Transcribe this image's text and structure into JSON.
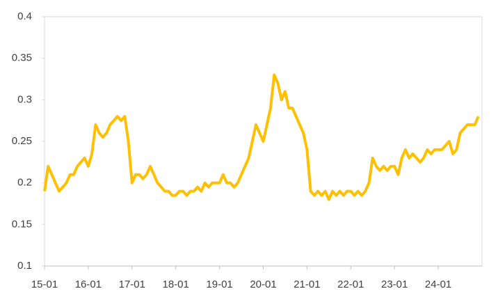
{
  "chart_data": {
    "type": "line",
    "categories": [
      "15-01",
      null,
      null,
      null,
      null,
      null,
      null,
      null,
      null,
      null,
      null,
      null,
      "16-01",
      null,
      null,
      null,
      null,
      null,
      null,
      null,
      null,
      null,
      null,
      null,
      "17-01",
      null,
      null,
      null,
      null,
      null,
      null,
      null,
      null,
      null,
      null,
      null,
      "18-01",
      null,
      null,
      null,
      null,
      null,
      null,
      null,
      null,
      null,
      null,
      null,
      "19-01",
      null,
      null,
      null,
      null,
      null,
      null,
      null,
      null,
      null,
      null,
      null,
      "20-01",
      null,
      null,
      null,
      null,
      null,
      null,
      null,
      null,
      null,
      null,
      null,
      "21-01",
      null,
      null,
      null,
      null,
      null,
      null,
      null,
      null,
      null,
      null,
      null,
      "22-01",
      null,
      null,
      null,
      null,
      null,
      null,
      null,
      null,
      null,
      null,
      null,
      "23-01",
      null,
      null,
      null,
      null,
      null,
      null,
      null,
      null,
      null,
      null,
      null,
      "24-01",
      null,
      null,
      null,
      null,
      null,
      null,
      null,
      null,
      null,
      null,
      null
    ],
    "values": [
      0.19,
      0.22,
      0.21,
      0.2,
      0.19,
      0.195,
      0.2,
      0.21,
      0.21,
      0.22,
      0.225,
      0.23,
      0.22,
      0.235,
      0.27,
      0.26,
      0.255,
      0.26,
      0.27,
      0.275,
      0.28,
      0.275,
      0.28,
      0.25,
      0.2,
      0.21,
      0.21,
      0.205,
      0.21,
      0.22,
      0.21,
      0.2,
      0.195,
      0.19,
      0.19,
      0.185,
      0.185,
      0.19,
      0.19,
      0.185,
      0.19,
      0.19,
      0.195,
      0.19,
      0.2,
      0.195,
      0.2,
      0.2,
      0.2,
      0.21,
      0.2,
      0.2,
      0.195,
      0.2,
      0.21,
      0.22,
      0.23,
      0.25,
      0.27,
      0.26,
      0.25,
      0.27,
      0.29,
      0.33,
      0.32,
      0.3,
      0.31,
      0.29,
      0.29,
      0.28,
      0.27,
      0.26,
      0.24,
      0.19,
      0.185,
      0.19,
      0.185,
      0.19,
      0.18,
      0.19,
      0.185,
      0.19,
      0.185,
      0.19,
      0.19,
      0.185,
      0.19,
      0.185,
      0.19,
      0.2,
      0.23,
      0.22,
      0.215,
      0.22,
      0.215,
      0.22,
      0.22,
      0.21,
      0.23,
      0.24,
      0.23,
      0.235,
      0.23,
      0.225,
      0.23,
      0.24,
      0.235,
      0.24,
      0.24,
      0.24,
      0.245,
      0.25,
      0.235,
      0.24,
      0.26,
      0.265,
      0.27,
      0.27,
      0.27,
      0.28
    ],
    "color": "#FFC000",
    "ylim": [
      0.1,
      0.4
    ],
    "yticks": [
      0.1,
      0.15,
      0.2,
      0.25,
      0.3,
      0.35,
      0.4
    ]
  }
}
